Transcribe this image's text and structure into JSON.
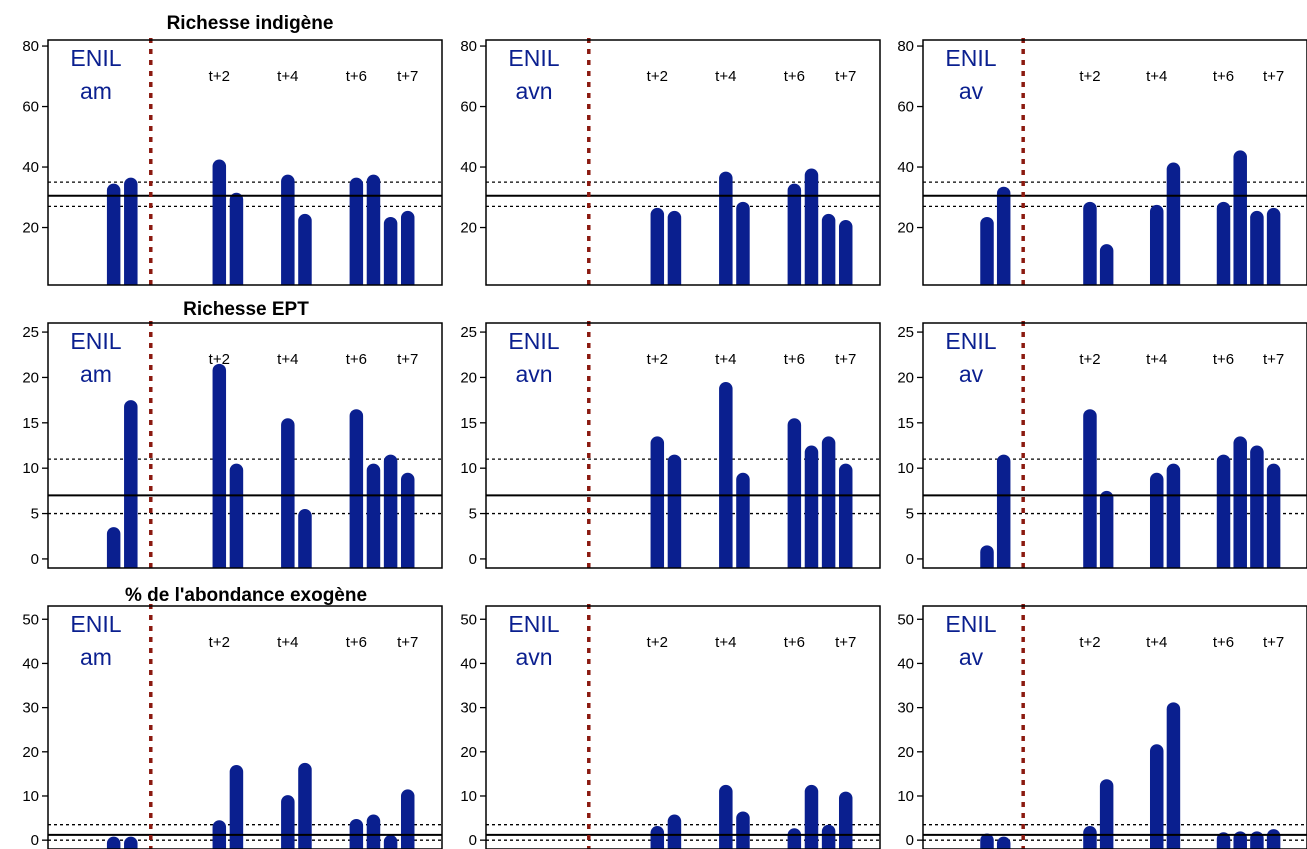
{
  "colors": {
    "bar": "#0a1f8f",
    "site_label": "#0a1f8f",
    "event_line": "#8b1a10",
    "axis": "#000000"
  },
  "time_labels": [
    "t+2",
    "t+4",
    "t+6",
    "t+7"
  ],
  "chart_data": [
    {
      "type": "bar",
      "title": "Richesse indigène",
      "ylim": [
        1,
        82
      ],
      "yticks": [
        20,
        40,
        60,
        80
      ],
      "reference": {
        "median": 30.5,
        "lower": 27,
        "upper": 35
      },
      "panels": [
        {
          "site_line1": "ENIL",
          "site_line2": "am",
          "bars": [
            {
              "x": 2.3,
              "value": 34.5
            },
            {
              "x": 2.9,
              "value": 36.5
            },
            {
              "x": 6.0,
              "value": 42.5
            },
            {
              "x": 6.6,
              "value": 31.5
            },
            {
              "x": 8.4,
              "value": 37.5
            },
            {
              "x": 9.0,
              "value": 24.5
            },
            {
              "x": 10.8,
              "value": 36.5
            },
            {
              "x": 11.4,
              "value": 37.5
            },
            {
              "x": 12.0,
              "value": 23.5
            },
            {
              "x": 12.6,
              "value": 25.5
            }
          ]
        },
        {
          "site_line1": "ENIL",
          "site_line2": "avn",
          "bars": [
            {
              "x": 6.0,
              "value": 26.5
            },
            {
              "x": 6.6,
              "value": 25.5
            },
            {
              "x": 8.4,
              "value": 38.5
            },
            {
              "x": 9.0,
              "value": 28.5
            },
            {
              "x": 10.8,
              "value": 34.5
            },
            {
              "x": 11.4,
              "value": 39.5
            },
            {
              "x": 12.0,
              "value": 24.5
            },
            {
              "x": 12.6,
              "value": 22.5
            }
          ]
        },
        {
          "site_line1": "ENIL",
          "site_line2": "av",
          "bars": [
            {
              "x": 2.3,
              "value": 23.5
            },
            {
              "x": 2.9,
              "value": 33.5
            },
            {
              "x": 6.0,
              "value": 28.5
            },
            {
              "x": 6.6,
              "value": 14.5
            },
            {
              "x": 8.4,
              "value": 27.5
            },
            {
              "x": 9.0,
              "value": 41.5
            },
            {
              "x": 10.8,
              "value": 28.5
            },
            {
              "x": 11.4,
              "value": 45.5
            },
            {
              "x": 12.0,
              "value": 25.5
            },
            {
              "x": 12.6,
              "value": 26.5
            }
          ]
        }
      ]
    },
    {
      "type": "bar",
      "title": "Richesse EPT",
      "ylim": [
        -1,
        26
      ],
      "yticks": [
        0,
        5,
        10,
        15,
        20,
        25
      ],
      "reference": {
        "median": 7,
        "lower": 5,
        "upper": 11
      },
      "panels": [
        {
          "site_line1": "ENIL",
          "site_line2": "am",
          "bars": [
            {
              "x": 2.3,
              "value": 3.5
            },
            {
              "x": 2.9,
              "value": 17.5
            },
            {
              "x": 6.0,
              "value": 21.5
            },
            {
              "x": 6.6,
              "value": 10.5
            },
            {
              "x": 8.4,
              "value": 15.5
            },
            {
              "x": 9.0,
              "value": 5.5
            },
            {
              "x": 10.8,
              "value": 16.5
            },
            {
              "x": 11.4,
              "value": 10.5
            },
            {
              "x": 12.0,
              "value": 11.5
            },
            {
              "x": 12.6,
              "value": 9.5
            }
          ]
        },
        {
          "site_line1": "ENIL",
          "site_line2": "avn",
          "bars": [
            {
              "x": 6.0,
              "value": 13.5
            },
            {
              "x": 6.6,
              "value": 11.5
            },
            {
              "x": 8.4,
              "value": 19.5
            },
            {
              "x": 9.0,
              "value": 9.5
            },
            {
              "x": 10.8,
              "value": 15.5
            },
            {
              "x": 11.4,
              "value": 12.5
            },
            {
              "x": 12.0,
              "value": 13.5
            },
            {
              "x": 12.6,
              "value": 10.5
            }
          ]
        },
        {
          "site_line1": "ENIL",
          "site_line2": "av",
          "bars": [
            {
              "x": 2.3,
              "value": 1.5
            },
            {
              "x": 2.9,
              "value": 11.5
            },
            {
              "x": 6.0,
              "value": 16.5
            },
            {
              "x": 6.6,
              "value": 7.5
            },
            {
              "x": 8.4,
              "value": 9.5
            },
            {
              "x": 9.0,
              "value": 10.5
            },
            {
              "x": 10.8,
              "value": 11.5
            },
            {
              "x": 11.4,
              "value": 13.5
            },
            {
              "x": 12.0,
              "value": 12.5
            },
            {
              "x": 12.6,
              "value": 10.5
            }
          ]
        }
      ]
    },
    {
      "type": "bar",
      "title": "% de l'abondance exogène",
      "ylim": [
        -2,
        53
      ],
      "yticks": [
        0,
        10,
        20,
        30,
        40,
        50
      ],
      "reference": {
        "median": 1.2,
        "lower": 0,
        "upper": 3.5
      },
      "panels": [
        {
          "site_line1": "ENIL",
          "site_line2": "am",
          "bars": [
            {
              "x": 2.3,
              "value": 0.8
            },
            {
              "x": 2.9,
              "value": 0.8
            },
            {
              "x": 6.0,
              "value": 4.5
            },
            {
              "x": 6.6,
              "value": 17.0
            },
            {
              "x": 8.4,
              "value": 10.2
            },
            {
              "x": 9.0,
              "value": 17.5
            },
            {
              "x": 10.8,
              "value": 4.8
            },
            {
              "x": 11.4,
              "value": 5.8
            },
            {
              "x": 12.0,
              "value": 1.2
            },
            {
              "x": 12.6,
              "value": 11.5
            }
          ]
        },
        {
          "site_line1": "ENIL",
          "site_line2": "avn",
          "bars": [
            {
              "x": 6.0,
              "value": 3.2
            },
            {
              "x": 6.6,
              "value": 5.8
            },
            {
              "x": 8.4,
              "value": 12.5
            },
            {
              "x": 9.0,
              "value": 6.5
            },
            {
              "x": 10.8,
              "value": 2.7
            },
            {
              "x": 11.4,
              "value": 12.5
            },
            {
              "x": 12.0,
              "value": 3.5
            },
            {
              "x": 12.6,
              "value": 11.0
            }
          ]
        },
        {
          "site_line1": "ENIL",
          "site_line2": "av",
          "bars": [
            {
              "x": 2.3,
              "value": 1.5
            },
            {
              "x": 2.9,
              "value": 0.8
            },
            {
              "x": 6.0,
              "value": 3.2
            },
            {
              "x": 6.6,
              "value": 13.8
            },
            {
              "x": 8.4,
              "value": 21.7
            },
            {
              "x": 9.0,
              "value": 31.2
            },
            {
              "x": 10.8,
              "value": 1.8
            },
            {
              "x": 11.4,
              "value": 2.0
            },
            {
              "x": 12.0,
              "value": 2.0
            },
            {
              "x": 12.6,
              "value": 2.5
            }
          ]
        }
      ]
    }
  ]
}
